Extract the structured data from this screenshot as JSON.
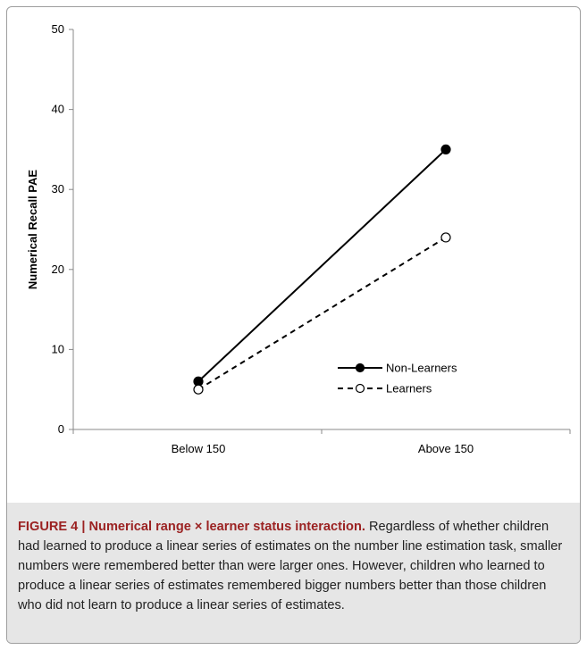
{
  "chart_data": {
    "type": "line",
    "categories": [
      "Below 150",
      "Above 150"
    ],
    "ylabel": "Numerical Recall PAE",
    "xlabel": "",
    "ylim": [
      0,
      50
    ],
    "yticks": [
      0,
      10,
      20,
      30,
      40,
      50
    ],
    "grid": false,
    "legend_position": "center-right",
    "series": [
      {
        "name": "Non-Learners",
        "values": [
          6,
          35
        ],
        "line_style": "solid",
        "marker": "filled-circle",
        "color": "#000000"
      },
      {
        "name": "Learners",
        "values": [
          5,
          24
        ],
        "line_style": "dashed",
        "marker": "open-circle",
        "color": "#000000"
      }
    ]
  },
  "caption": {
    "title": "FIGURE 4 | Numerical range × learner status interaction.",
    "text": " Regardless of whether children had learned to produce a linear series of estimates on the number line estimation task, smaller numbers were remembered better than were larger ones. However, children who learned to produce a linear series of estimates remembered bigger numbers better than those children who did not learn to produce a linear series of estimates."
  },
  "colors": {
    "caption_title": "#9b2222",
    "caption_background": "#e6e6e6",
    "axis": "#888888"
  }
}
